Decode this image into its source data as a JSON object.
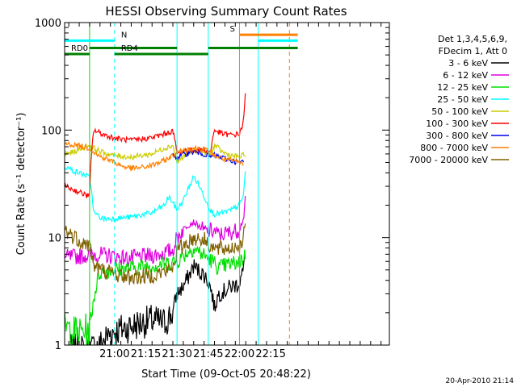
{
  "chart_data": {
    "type": "line",
    "title": "HESSI Observing Summary Count Rates",
    "xlabel": "Start Time (09-Oct-05 20:48:22)",
    "ylabel": "Count Rate (s⁻¹ detector⁻¹)",
    "ylog": true,
    "xlim_minutes": [
      -12,
      144
    ],
    "ylim": [
      1,
      1000
    ],
    "x_ticks": [
      {
        "t": 12,
        "label": "21:00"
      },
      {
        "t": 27,
        "label": "21:15"
      },
      {
        "t": 42,
        "label": "21:30"
      },
      {
        "t": 57,
        "label": "21:45"
      },
      {
        "t": 72,
        "label": "22:00"
      },
      {
        "t": 87,
        "label": "22:15"
      }
    ],
    "y_ticks": [
      {
        "v": 1,
        "label": "1"
      },
      {
        "v": 10,
        "label": "10"
      },
      {
        "v": 100,
        "label": "100"
      },
      {
        "v": 1000,
        "label": "1000"
      }
    ],
    "legend_header": [
      "Det 1,3,4,5,6,9,",
      "FDecim 1, Att 0"
    ],
    "legend_placement": "right",
    "footer_date": "20-Apr-2010 21:14",
    "series": [
      {
        "name": "3 - 6 keV",
        "color": "#000000",
        "x": [
          -10,
          0,
          5,
          10,
          20,
          30,
          36,
          40,
          42,
          45,
          48,
          50,
          52,
          55,
          58,
          60,
          62,
          65,
          68,
          70,
          72,
          74,
          75
        ],
        "y": [
          0.9,
          0.9,
          1.0,
          1.3,
          1.5,
          1.7,
          1.6,
          2.0,
          3.0,
          3.5,
          4.5,
          5.5,
          5.0,
          4.5,
          3.5,
          2.2,
          3.0,
          3.2,
          3.5,
          3.6,
          3.8,
          5,
          9
        ]
      },
      {
        "name": "6 - 12 keV",
        "color": "#e000e0",
        "x": [
          -12,
          -5,
          2,
          6,
          12,
          18,
          24,
          30,
          36,
          40,
          42,
          46,
          50,
          52,
          55,
          60,
          62,
          66,
          70,
          72,
          74,
          75
        ],
        "y": [
          6.5,
          6.7,
          7.0,
          6.9,
          6.7,
          6.4,
          6.6,
          6.8,
          7.2,
          7.6,
          10,
          12.5,
          14,
          13,
          11.5,
          11.5,
          10.5,
          11,
          11.5,
          12,
          15,
          25
        ]
      },
      {
        "name": "12 - 25 keV",
        "color": "#00e000",
        "x": [
          -12,
          -10,
          -5,
          -2,
          0,
          5,
          10,
          20,
          30,
          36,
          40,
          42,
          45,
          48,
          50,
          52,
          55,
          58,
          60,
          62,
          65,
          70,
          72,
          74,
          75
        ],
        "y": [
          1.5,
          1.4,
          1.3,
          1.4,
          1.3,
          4.8,
          5.0,
          5.2,
          5.5,
          5.7,
          5.9,
          6.0,
          6.8,
          7.5,
          8.0,
          7.5,
          6.8,
          6.2,
          5.8,
          5.2,
          5.5,
          5.8,
          6.0,
          6.5,
          7
        ]
      },
      {
        "name": "25 - 50 keV",
        "color": "#00ffff",
        "x": [
          -12,
          -8,
          -2,
          0,
          2,
          6,
          10,
          20,
          30,
          36,
          38,
          42,
          45,
          48,
          50,
          52,
          55,
          58,
          60,
          64,
          68,
          72,
          74,
          75
        ],
        "y": [
          46,
          42,
          38,
          36,
          17,
          15,
          15,
          15.5,
          17,
          20,
          24,
          18,
          22,
          30,
          37,
          32,
          24,
          18,
          16.5,
          17,
          18,
          20,
          25,
          45
        ]
      },
      {
        "name": "50 - 100 keV",
        "color": "#cccc00",
        "x": [
          -12,
          -8,
          -2,
          0,
          2,
          6,
          12,
          20,
          30,
          36,
          40,
          42,
          46,
          50,
          55,
          58,
          60,
          64,
          68,
          72,
          75
        ],
        "y": [
          60,
          62,
          70,
          72,
          68,
          62,
          58,
          56,
          60,
          68,
          72,
          50,
          58,
          65,
          62,
          58,
          72,
          62,
          58,
          56,
          60
        ]
      },
      {
        "name": "100 - 300 keV",
        "color": "#ff0000",
        "x": [
          -12,
          -8,
          -4,
          -2,
          0,
          2,
          6,
          12,
          20,
          30,
          36,
          40,
          42,
          46,
          50,
          55,
          58,
          60,
          64,
          68,
          72,
          74,
          75
        ],
        "y": [
          30,
          28,
          26,
          25,
          24,
          100,
          92,
          84,
          80,
          85,
          92,
          98,
          60,
          65,
          65,
          66,
          62,
          100,
          92,
          90,
          92,
          120,
          240
        ]
      },
      {
        "name": "300 - 800 keV",
        "color": "#0000ee",
        "x": [
          40,
          42,
          46,
          50,
          55,
          58,
          60,
          64,
          68,
          72,
          74
        ],
        "y": [
          58,
          56,
          60,
          63,
          60,
          56,
          58,
          55,
          52,
          50,
          50
        ]
      },
      {
        "name": "800 - 7000 keV",
        "color": "#ff8000",
        "x": [
          -12,
          -6,
          0,
          4,
          8,
          12,
          16,
          20,
          26,
          30,
          36,
          40,
          42,
          46,
          50,
          55,
          58,
          60,
          64,
          68,
          72,
          74
        ],
        "y": [
          75,
          72,
          68,
          58,
          54,
          50,
          46,
          44,
          45,
          47,
          52,
          58,
          62,
          66,
          68,
          66,
          62,
          58,
          54,
          52,
          50,
          48
        ]
      },
      {
        "name": "7000 - 20000 keV",
        "color": "#806000",
        "x": [
          -12,
          -10,
          -5,
          -2,
          0,
          2,
          6,
          12,
          18,
          24,
          30,
          36,
          40,
          42,
          46,
          50,
          52,
          55,
          58,
          60,
          64,
          68,
          72,
          74,
          75
        ],
        "y": [
          12,
          11,
          9.5,
          8.8,
          8.5,
          5.5,
          5.0,
          4.6,
          4.3,
          4.3,
          4.5,
          4.8,
          5.2,
          7.5,
          8.8,
          9.8,
          10,
          9.5,
          8.6,
          7.8,
          7.8,
          8.0,
          8.5,
          10,
          15
        ]
      }
    ],
    "flags": [
      {
        "label": "RD0",
        "color": "#008000",
        "level": 510,
        "start": -12,
        "end": 0
      },
      {
        "label": "",
        "color": "#008000",
        "level": 580,
        "start": 0,
        "end": 42
      },
      {
        "label": "RD4",
        "color": "#008000",
        "level": 510,
        "start": 12,
        "end": 42
      },
      {
        "label": "",
        "color": "#008000",
        "level": 510,
        "start": 42,
        "end": 57
      },
      {
        "label": "",
        "color": "#008000",
        "level": 580,
        "start": 57,
        "end": 100
      },
      {
        "label": "N",
        "color": "#00ffff",
        "level": 680,
        "start": -12,
        "end": 12
      },
      {
        "label": "",
        "color": "#00ffff",
        "level": 680,
        "start": 81,
        "end": 100
      },
      {
        "label": "S",
        "color": "#ff8000",
        "level": 770,
        "start": 72,
        "end": 100
      }
    ],
    "vlines": [
      {
        "t": -12,
        "color": "#00ffff",
        "dashed": false
      },
      {
        "t": 0,
        "color": "#00e000",
        "dashed": false
      },
      {
        "t": 12,
        "color": "#00ffff",
        "dashed": true
      },
      {
        "t": 42,
        "color": "#00ffff",
        "dashed": false
      },
      {
        "t": 57,
        "color": "#00ffff",
        "dashed": false
      },
      {
        "t": 72,
        "color": "#ff8000",
        "dashed": false
      },
      {
        "t": 81,
        "color": "#00ffff",
        "dashed": false
      },
      {
        "t": 96,
        "color": "#ff8000",
        "dashed": true
      }
    ]
  }
}
